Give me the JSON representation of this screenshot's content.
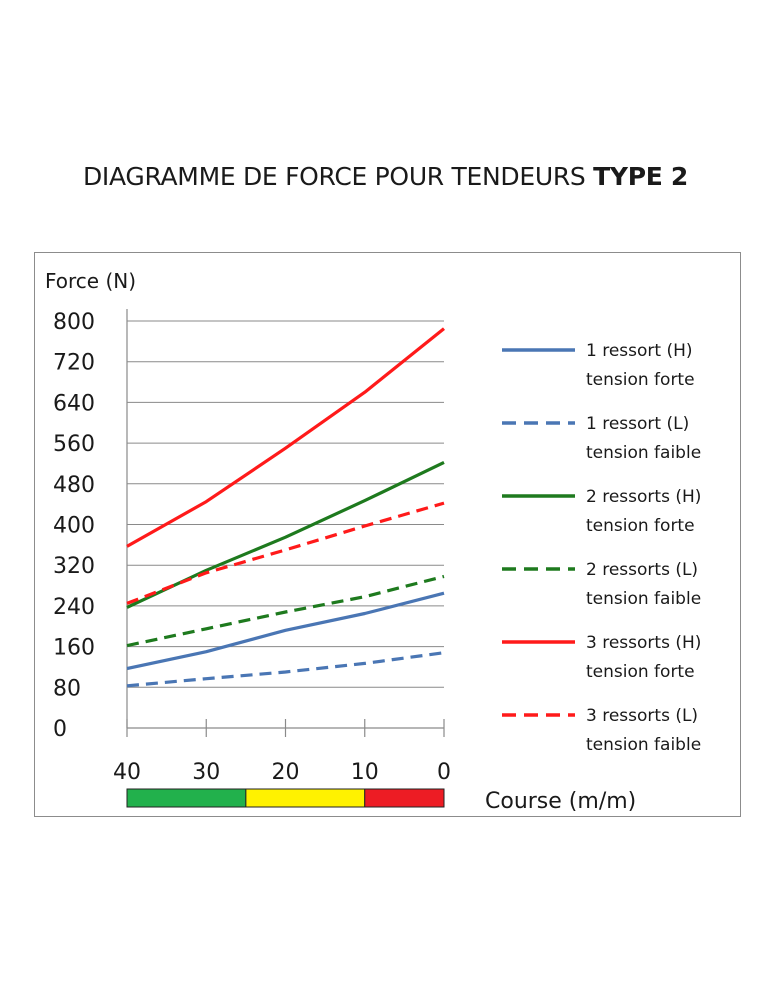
{
  "title": {
    "main": "DIAGRAMME DE FORCE POUR TENDEURS",
    "bold": "TYPE 2"
  },
  "chart_data": {
    "type": "line",
    "ylabel": "Force (N)",
    "xlabel": "Course (m/m)",
    "x_ticks": [
      40,
      30,
      20,
      10,
      0
    ],
    "y_ticks": [
      0,
      80,
      160,
      240,
      320,
      400,
      480,
      560,
      640,
      720,
      800
    ],
    "xlim": [
      40,
      0
    ],
    "ylim": [
      0,
      800
    ],
    "grid": "horizontal",
    "legend_position": "right",
    "x": [
      40,
      30,
      20,
      10,
      0
    ],
    "series": [
      {
        "name": "1 ressort (H)",
        "sub": "tension forte",
        "color": "#4a76b4",
        "dash": false,
        "values": [
          117,
          150,
          192,
          225,
          265
        ]
      },
      {
        "name": "1 ressort (L)",
        "sub": "tension faible",
        "color": "#4a76b4",
        "dash": true,
        "values": [
          83,
          97,
          110,
          127,
          148
        ]
      },
      {
        "name": "2 ressorts (H)",
        "sub": "tension forte",
        "color": "#1e7a1e",
        "dash": false,
        "values": [
          237,
          310,
          375,
          447,
          522
        ]
      },
      {
        "name": "2 ressorts (L)",
        "sub": "tension faible",
        "color": "#1e7a1e",
        "dash": true,
        "values": [
          162,
          195,
          228,
          258,
          298
        ]
      },
      {
        "name": "3 ressorts (H)",
        "sub": "tension forte",
        "color": "#ff1a1a",
        "dash": false,
        "values": [
          357,
          445,
          550,
          660,
          785
        ]
      },
      {
        "name": "3 ressorts (L)",
        "sub": "tension faible",
        "color": "#ff1a1a",
        "dash": true,
        "values": [
          245,
          305,
          350,
          397,
          442
        ]
      }
    ],
    "zones": [
      {
        "from": 40,
        "to": 25,
        "color": "#22b14c"
      },
      {
        "from": 25,
        "to": 10,
        "color": "#fff200"
      },
      {
        "from": 10,
        "to": 0,
        "color": "#ed1c24"
      }
    ]
  }
}
